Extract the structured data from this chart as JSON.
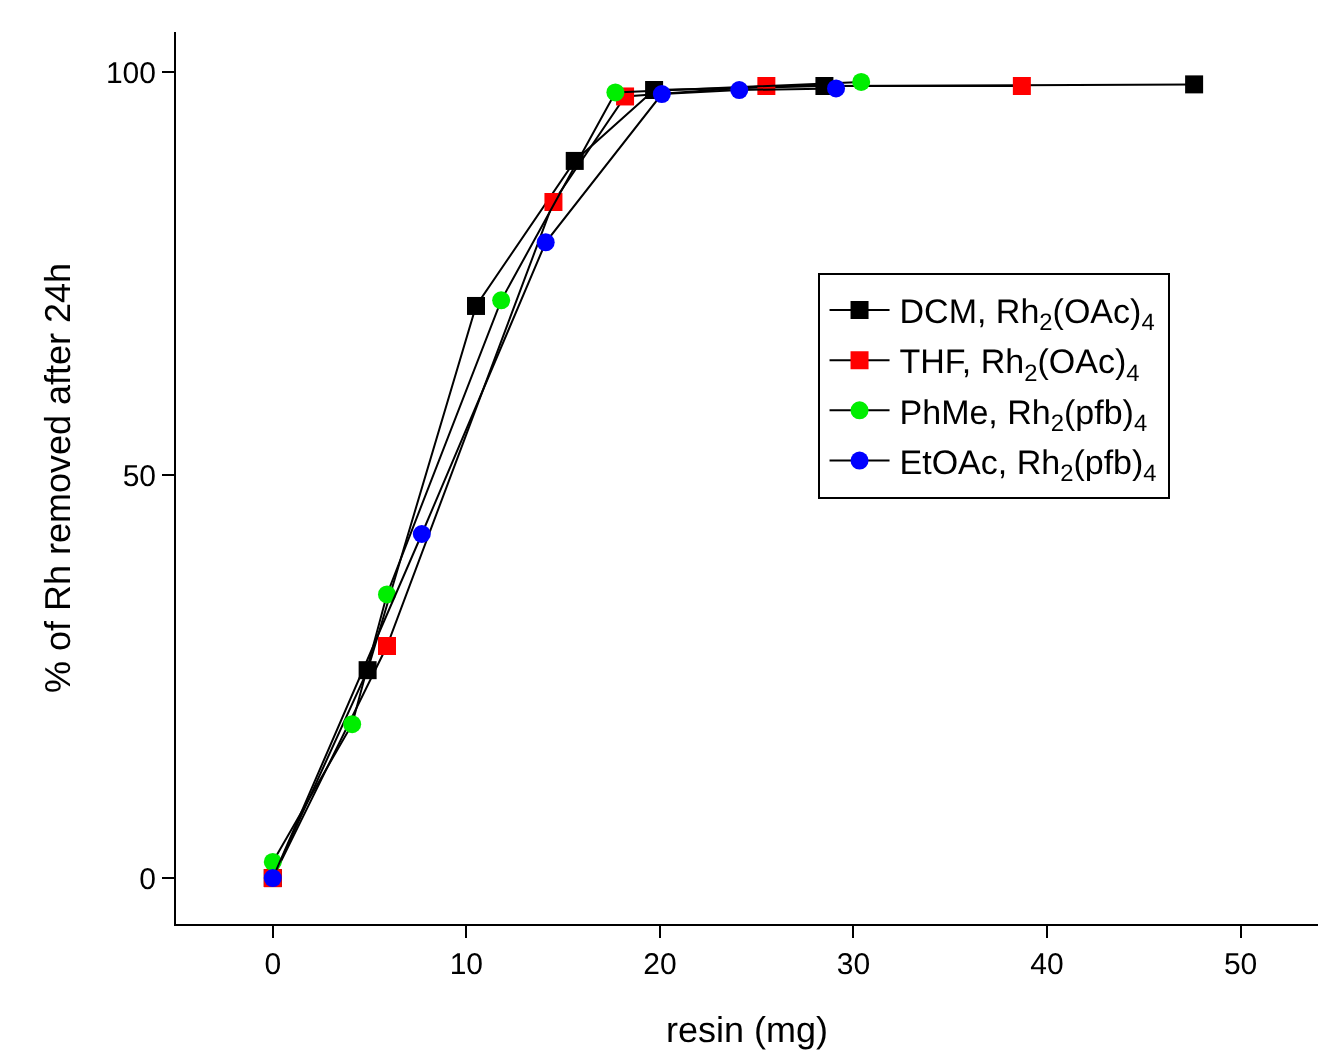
{
  "chart_data": {
    "type": "line",
    "xlabel": "resin (mg)",
    "ylabel": "% of Rh removed after 24h",
    "xlim": [
      -5,
      54
    ],
    "ylim": [
      -5.7,
      105
    ],
    "xticks": [
      0,
      10,
      20,
      30,
      40,
      50
    ],
    "yticks": [
      0,
      50,
      100
    ],
    "grid": false,
    "legend": "top right",
    "line_style": "solid",
    "series": [
      {
        "name": "DCM, Rh$_{2}$(OAc)$_{4}$",
        "color": "#000000",
        "marker": "square",
        "x": [
          0,
          4.9,
          10.5,
          15.6,
          19.7,
          28.5,
          47.6
        ],
        "values": [
          0,
          25.8,
          71,
          89,
          97.8,
          98.3,
          98.5
        ]
      },
      {
        "name": "THF, Rh$_{2}$(OAc)$_{4}$",
        "color": "#ff0000",
        "marker": "square",
        "x": [
          0,
          5.9,
          14.5,
          18.2,
          25.5,
          38.7
        ],
        "values": [
          0,
          28.8,
          83.9,
          97,
          98.3,
          98.3
        ]
      },
      {
        "name": "PhMe, Rh$_{2}$(pfb)$_{4}$",
        "color": "#00ee00",
        "marker": "circle",
        "x": [
          0,
          4.1,
          5.9,
          11.8,
          17.7,
          30.4
        ],
        "values": [
          2,
          19.1,
          35.2,
          71.7,
          97.5,
          98.8
        ]
      },
      {
        "name": "EtOAc, Rh$_{2}$(pfb)$_{4}$",
        "color": "#0000ff",
        "marker": "circle",
        "x": [
          0,
          7.7,
          14.1,
          20.1,
          24.1,
          29.1
        ],
        "values": [
          0,
          42.7,
          78.9,
          97.3,
          97.8,
          98
        ]
      }
    ]
  }
}
